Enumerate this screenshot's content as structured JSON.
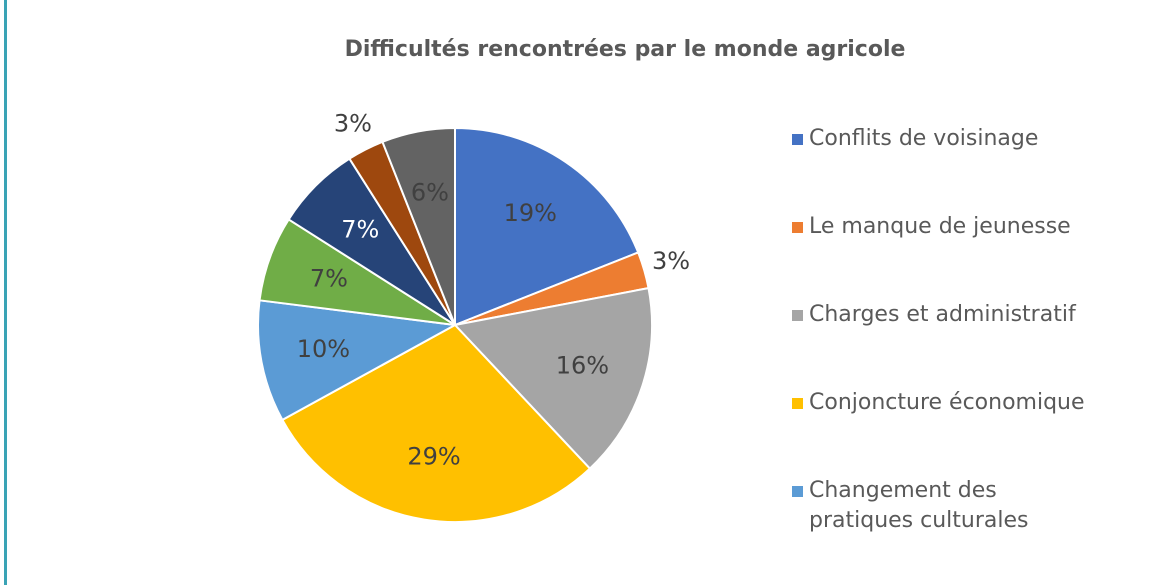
{
  "chart_data": {
    "type": "pie",
    "title": "Difficultés rencontrées par le monde agricole",
    "categories": [
      "Conflits de voisinage",
      "Le manque de jeunesse",
      "Charges et administratif",
      "Conjoncture économique",
      "Changement des pratiques culturales",
      null,
      null,
      null,
      null
    ],
    "values": [
      19,
      3,
      16,
      29,
      10,
      7,
      7,
      3,
      6
    ],
    "value_labels": [
      "19%",
      "3%",
      "16%",
      "29%",
      "10%",
      "7%",
      "7%",
      "3%",
      "6%"
    ],
    "colors": [
      "#4472c4",
      "#ed7d31",
      "#a5a5a5",
      "#ffc000",
      "#5b9bd5",
      "#70ad47",
      "#264478",
      "#9e480e",
      "#636363"
    ],
    "legend": "right"
  }
}
